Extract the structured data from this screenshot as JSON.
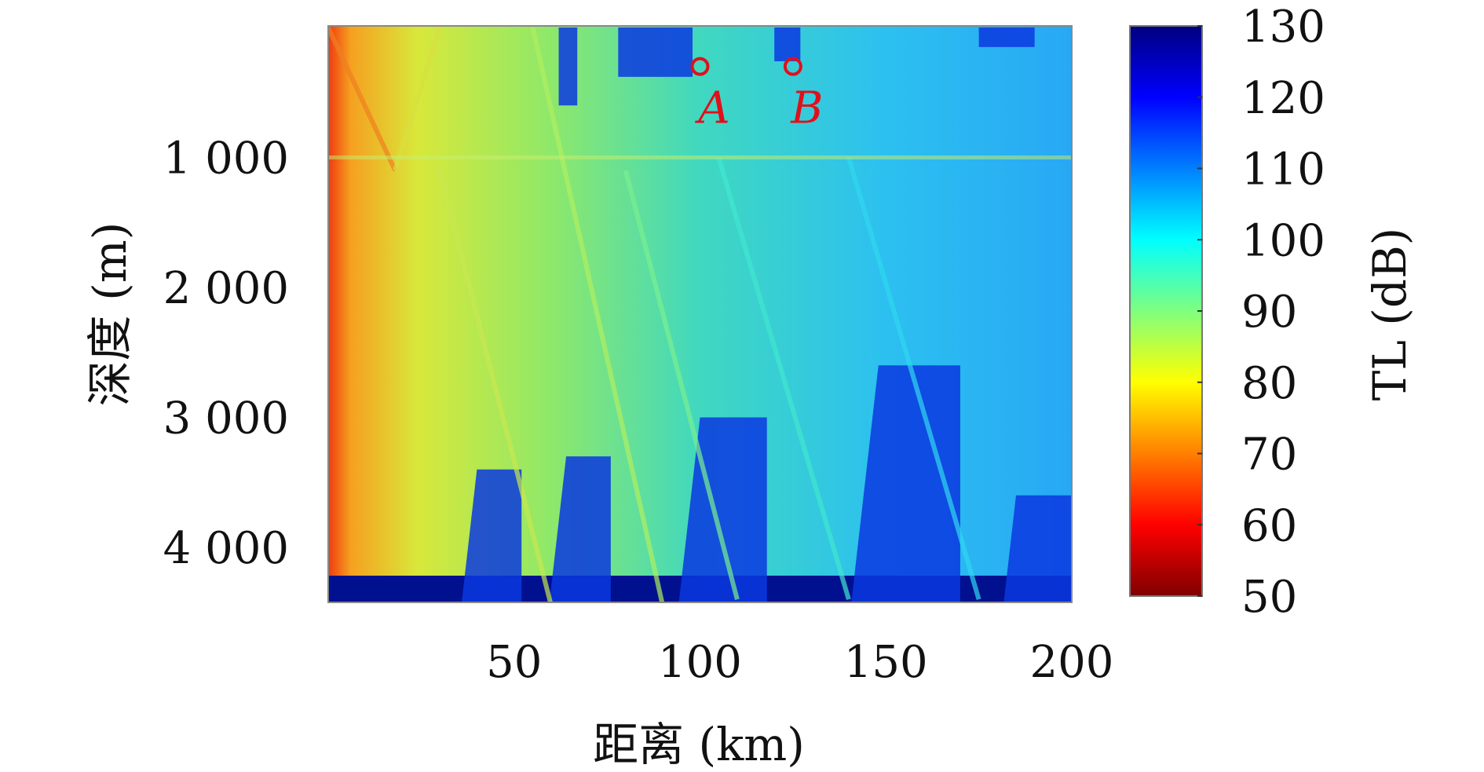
{
  "chart_data": {
    "type": "heatmap",
    "title": "",
    "xlabel": "距离 (km)",
    "ylabel": "深度 (m)",
    "xlim": [
      0,
      200
    ],
    "ylim": [
      0,
      4450
    ],
    "y_reversed": true,
    "xticks": [
      50,
      100,
      150,
      200
    ],
    "xtick_labels": [
      "50",
      "100",
      "150",
      "200"
    ],
    "yticks": [
      1000,
      2000,
      3000,
      4000
    ],
    "ytick_labels": [
      "1 000",
      "2 000",
      "3 000",
      "4 000"
    ],
    "colorbar": {
      "label": "TL (dB)",
      "range": [
        50,
        130
      ],
      "ticks": [
        50,
        60,
        70,
        80,
        90,
        100,
        110,
        120,
        130
      ],
      "tick_labels": [
        "50",
        "60",
        "70",
        "80",
        "90",
        "100",
        "110",
        "120",
        "130"
      ],
      "colormap": "jet",
      "reversed": true
    },
    "annotations": [
      {
        "label": "A",
        "x": 100,
        "y": 300,
        "color": "#e0101a"
      },
      {
        "label": "B",
        "x": 125,
        "y": 300,
        "color": "#e0101a"
      }
    ],
    "grid": false
  }
}
